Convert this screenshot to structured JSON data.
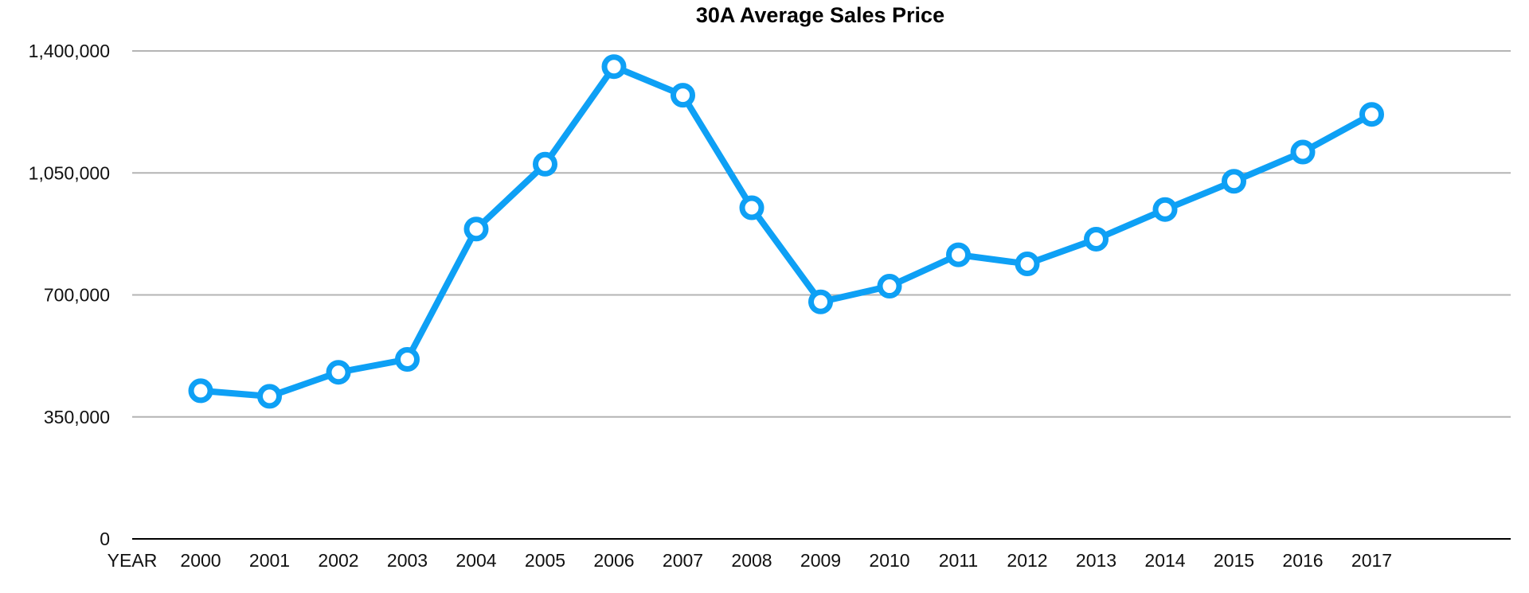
{
  "chart_data": {
    "type": "line",
    "title": "30A Average Sales Price",
    "xlabel": "YEAR",
    "ylabel": "",
    "categories": [
      "2000",
      "2001",
      "2002",
      "2003",
      "2004",
      "2005",
      "2006",
      "2007",
      "2008",
      "2009",
      "2010",
      "2011",
      "2012",
      "2013",
      "2014",
      "2015",
      "2016",
      "2017"
    ],
    "series": [
      {
        "name": "Average Sales Price",
        "color": "#0ea0f5",
        "values": [
          425000,
          409000,
          478000,
          515000,
          889000,
          1075000,
          1355000,
          1273000,
          950000,
          680000,
          725000,
          815000,
          789000,
          860000,
          945000,
          1026000,
          1110000,
          1218000
        ]
      }
    ],
    "ylim": [
      0,
      1400000
    ],
    "yticks": [
      0,
      350000,
      700000,
      1050000,
      1400000
    ],
    "ytick_labels": [
      "0",
      "350,000",
      "700,000",
      "1,050,000",
      "1,400,000"
    ],
    "grid": true,
    "legend": "none"
  }
}
